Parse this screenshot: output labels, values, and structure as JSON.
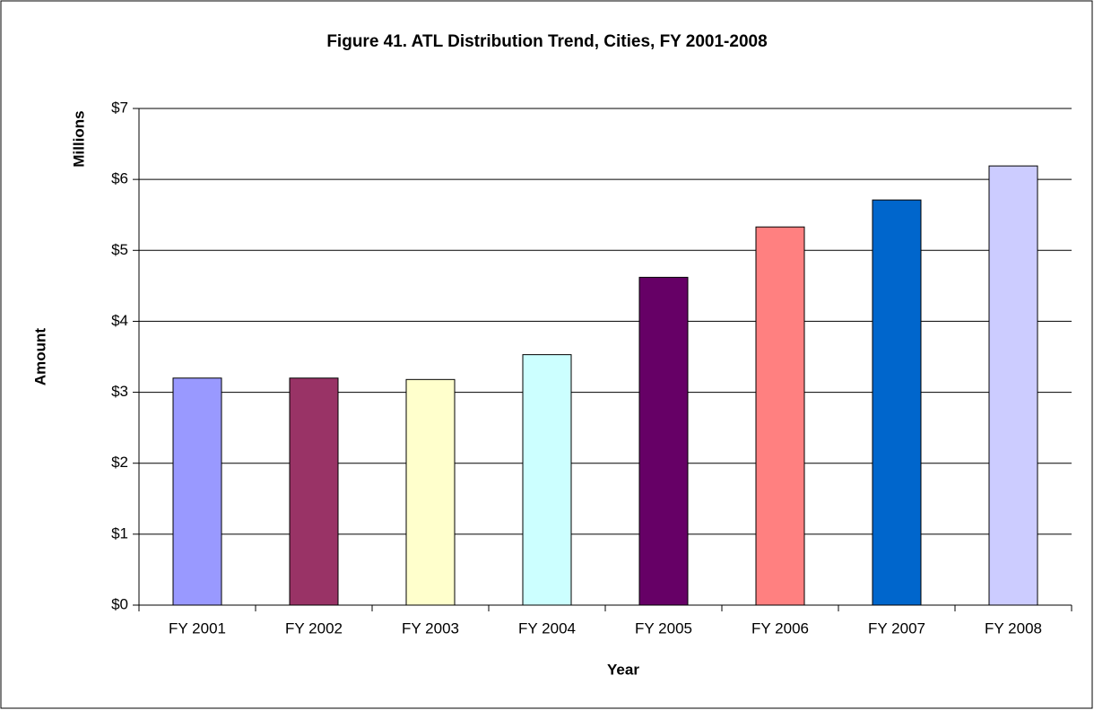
{
  "chart_data": {
    "type": "bar",
    "title": "Figure 41. ATL Distribution Trend, Cities, FY 2001-2008",
    "x_label": "Year",
    "y_label": "Amount",
    "y_unit_label": "Millions",
    "categories": [
      "FY 2001",
      "FY 2002",
      "FY 2003",
      "FY 2004",
      "FY 2005",
      "FY 2006",
      "FY 2007",
      "FY 2008"
    ],
    "values": [
      3.2,
      3.2,
      3.18,
      3.53,
      4.62,
      5.33,
      5.71,
      6.19
    ],
    "colors": [
      "#9999ff",
      "#993366",
      "#ffffcc",
      "#ccffff",
      "#660066",
      "#ff8080",
      "#0066cc",
      "#ccccff"
    ],
    "ylim": [
      0,
      7
    ],
    "yticks": [
      {
        "value": 0,
        "label": "$0"
      },
      {
        "value": 1,
        "label": "$1"
      },
      {
        "value": 2,
        "label": "$2"
      },
      {
        "value": 3,
        "label": "$3"
      },
      {
        "value": 4,
        "label": "$4"
      },
      {
        "value": 5,
        "label": "$5"
      },
      {
        "value": 6,
        "label": "$6"
      },
      {
        "value": 7,
        "label": "$7"
      }
    ],
    "grid": true
  }
}
